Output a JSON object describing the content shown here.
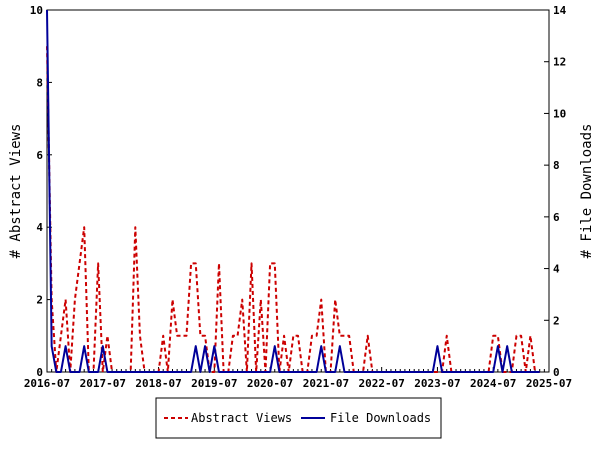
{
  "chart_data": {
    "type": "line",
    "title": "",
    "xlabel": "",
    "ylabel_left": "# Abstract Views",
    "ylabel_right": "# File Downloads",
    "ylim_left": [
      0,
      10
    ],
    "ylim_right": [
      0,
      14
    ],
    "grid": false,
    "legend_position": "bottom-center",
    "x_tick_labels": [
      "2016-07",
      "2017-07",
      "2018-07",
      "2019-07",
      "2020-07",
      "2021-07",
      "2022-07",
      "2023-07",
      "2024-07",
      "2025-07"
    ],
    "y_left_tick_labels": [
      "0",
      "2",
      "4",
      "6",
      "8",
      "10"
    ],
    "y_right_tick_labels": [
      "0",
      "2",
      "4",
      "6",
      "8",
      "10",
      "12",
      "14"
    ],
    "x_months": [
      "2016-07",
      "2016-08",
      "2016-09",
      "2016-10",
      "2016-11",
      "2016-12",
      "2017-01",
      "2017-02",
      "2017-03",
      "2017-04",
      "2017-05",
      "2017-06",
      "2017-07",
      "2017-08",
      "2017-09",
      "2017-10",
      "2017-11",
      "2017-12",
      "2018-01",
      "2018-02",
      "2018-03",
      "2018-04",
      "2018-05",
      "2018-06",
      "2018-07",
      "2018-08",
      "2018-09",
      "2018-10",
      "2018-11",
      "2018-12",
      "2019-01",
      "2019-02",
      "2019-03",
      "2019-04",
      "2019-05",
      "2019-06",
      "2019-07",
      "2019-08",
      "2019-09",
      "2019-10",
      "2019-11",
      "2019-12",
      "2020-01",
      "2020-02",
      "2020-03",
      "2020-04",
      "2020-05",
      "2020-06",
      "2020-07",
      "2020-08",
      "2020-09",
      "2020-10",
      "2020-11",
      "2020-12",
      "2021-01",
      "2021-02",
      "2021-03",
      "2021-04",
      "2021-05",
      "2021-06",
      "2021-07",
      "2021-08",
      "2021-09",
      "2021-10",
      "2021-11",
      "2021-12",
      "2022-01",
      "2022-02",
      "2022-03",
      "2022-04",
      "2022-05",
      "2022-06",
      "2022-07",
      "2022-08",
      "2022-09",
      "2022-10",
      "2022-11",
      "2022-12",
      "2023-01",
      "2023-02",
      "2023-03",
      "2023-04",
      "2023-05",
      "2023-06",
      "2023-07",
      "2023-08",
      "2023-09",
      "2023-10",
      "2023-11",
      "2023-12",
      "2024-01",
      "2024-02",
      "2024-03",
      "2024-04",
      "2024-05",
      "2024-06",
      "2024-07",
      "2024-08",
      "2024-09",
      "2024-10",
      "2024-11",
      "2024-12",
      "2025-01",
      "2025-02",
      "2025-03",
      "2025-04",
      "2025-05",
      "2025-06",
      "2025-07"
    ],
    "series": [
      {
        "name": "Abstract Views",
        "axis": "left",
        "color": "#cc0000",
        "dash": true,
        "values": [
          9,
          2,
          0,
          1,
          2,
          0,
          2,
          3,
          4,
          0,
          0,
          3,
          0,
          1,
          0,
          0,
          0,
          0,
          0,
          4,
          1,
          0,
          0,
          0,
          0,
          1,
          0,
          2,
          1,
          1,
          1,
          3,
          3,
          1,
          1,
          0,
          0,
          3,
          0,
          0,
          1,
          1,
          2,
          0,
          3,
          0,
          2,
          0,
          3,
          3,
          0,
          1,
          0,
          1,
          1,
          0,
          0,
          1,
          1,
          2,
          0,
          0,
          2,
          1,
          1,
          1,
          0,
          0,
          0,
          1,
          0,
          0,
          0,
          0,
          0,
          0,
          0,
          0,
          0,
          0,
          0,
          0,
          0,
          0,
          0,
          0,
          1,
          0,
          0,
          0,
          0,
          0,
          0,
          0,
          0,
          0,
          1,
          1,
          0,
          0,
          0,
          1,
          1,
          0,
          1,
          0,
          0
        ]
      },
      {
        "name": "File Downloads",
        "axis": "right",
        "color": "#000099",
        "dash": false,
        "values": [
          14,
          1,
          0,
          0,
          1,
          0,
          0,
          0,
          1,
          0,
          0,
          0,
          1,
          0,
          0,
          0,
          0,
          0,
          0,
          0,
          0,
          0,
          0,
          0,
          0,
          0,
          0,
          0,
          0,
          0,
          0,
          0,
          1,
          0,
          1,
          0,
          1,
          0,
          0,
          0,
          0,
          0,
          0,
          0,
          0,
          0,
          0,
          0,
          0,
          1,
          0,
          0,
          0,
          0,
          0,
          0,
          0,
          0,
          0,
          1,
          0,
          0,
          0,
          1,
          0,
          0,
          0,
          0,
          0,
          0,
          0,
          0,
          0,
          0,
          0,
          0,
          0,
          0,
          0,
          0,
          0,
          0,
          0,
          0,
          1,
          0,
          0,
          0,
          0,
          0,
          0,
          0,
          0,
          0,
          0,
          0,
          0,
          1,
          0,
          1,
          0,
          0,
          0,
          0,
          0,
          0,
          0
        ]
      }
    ]
  },
  "legend": {
    "items": [
      {
        "label": "Abstract Views",
        "color": "#cc0000",
        "dash": true
      },
      {
        "label": "File Downloads",
        "color": "#000099",
        "dash": false
      }
    ]
  }
}
